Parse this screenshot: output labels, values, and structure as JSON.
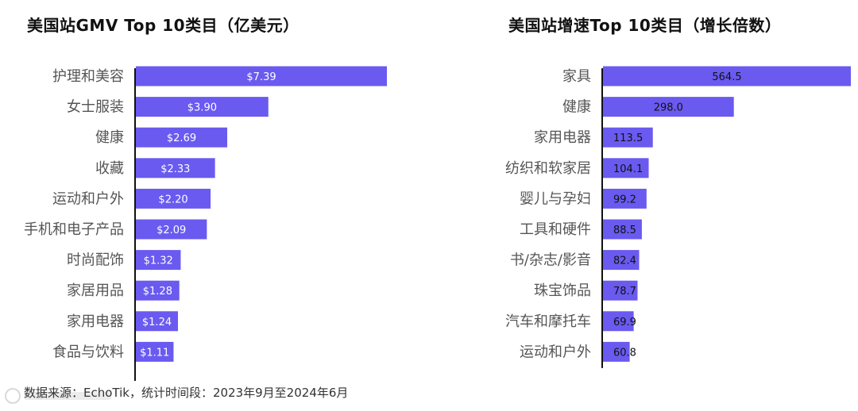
{
  "chart_data": [
    {
      "type": "bar",
      "orientation": "horizontal",
      "title": "美国站GMV Top 10类目（亿美元）",
      "categories": [
        "护理和美容",
        "女士服装",
        "健康",
        "收藏",
        "运动和户外",
        "手机和电子产品",
        "时尚配饰",
        "家居用品",
        "家用电器",
        "食品与饮料"
      ],
      "values": [
        7.39,
        3.9,
        2.69,
        2.33,
        2.2,
        2.09,
        1.32,
        1.28,
        1.24,
        1.11
      ],
      "data_labels": [
        "$7.39",
        "$3.90",
        "$2.69",
        "$2.33",
        "$2.20",
        "$2.09",
        "$1.32",
        "$1.28",
        "$1.24",
        "$1.11"
      ],
      "xlim": [
        0,
        7.39
      ],
      "bar_color": "#6a5af0",
      "grid": false
    },
    {
      "type": "bar",
      "orientation": "horizontal",
      "title": "美国站增速Top 10类目（增长倍数）",
      "categories": [
        "家具",
        "健康",
        "家用电器",
        "纺织和软家居",
        "婴儿与孕妇",
        "工具和硬件",
        "书/杂志/影音",
        "珠宝饰品",
        "汽车和摩托车",
        "运动和户外"
      ],
      "values": [
        564.5,
        298.0,
        113.5,
        104.1,
        99.2,
        88.5,
        82.4,
        78.7,
        69.9,
        60.8
      ],
      "data_labels": [
        "564.5",
        "298.0",
        "113.5",
        "104.1",
        "99.2",
        "88.5",
        "82.4",
        "78.7",
        "69.9",
        "60.8"
      ],
      "xlim": [
        0,
        564.5
      ],
      "bar_color": "#6a5af0",
      "grid": false
    }
  ],
  "footer": "数据来源：EchoTik，统计时间段：2023年9月至2024年6月",
  "colors": {
    "bar": "#6a5af0",
    "axis": "#111111",
    "label": "#555555"
  }
}
